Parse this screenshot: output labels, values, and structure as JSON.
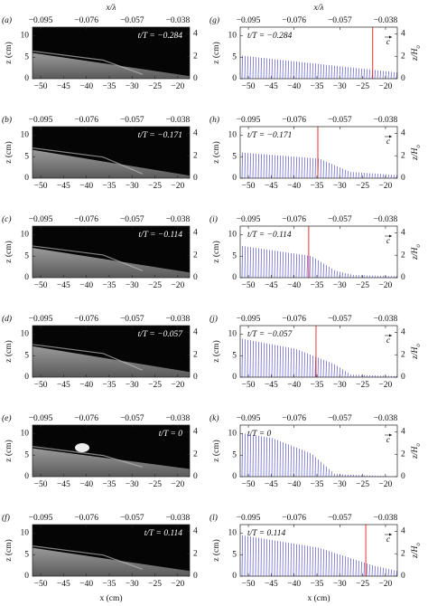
{
  "axes": {
    "top_label": "x/λ",
    "bottom_label": "x (cm)",
    "left_label": "z (cm)",
    "right_label": "z/H",
    "right_label_sub": "o",
    "vector_label": "c",
    "xlim": [
      -51.8,
      -17.4
    ],
    "xticks": [
      {
        "value": -50,
        "label": "−50"
      },
      {
        "value": -45,
        "label": "−45"
      },
      {
        "value": -40,
        "label": "−40"
      },
      {
        "value": -35,
        "label": "−35"
      },
      {
        "value": -30,
        "label": "−30"
      },
      {
        "value": -25,
        "label": "−25"
      },
      {
        "value": -20,
        "label": "−20"
      }
    ],
    "toplim": [
      -0.0984,
      -0.0331
    ],
    "topticks": [
      {
        "value": -0.095,
        "label": "−0.095"
      },
      {
        "value": -0.076,
        "label": "−0.076"
      },
      {
        "value": -0.057,
        "label": "−0.057"
      },
      {
        "value": -0.038,
        "label": "−0.038"
      }
    ],
    "zlim": [
      0,
      12
    ],
    "zticks": [
      0,
      5,
      10
    ],
    "hlim": [
      0,
      4.6
    ],
    "hticks": [
      0,
      2,
      4
    ]
  },
  "left_panels": [
    {
      "letter": "(a)",
      "time": "t/T = −0.284"
    },
    {
      "letter": "(b)",
      "time": "t/T = −0.171"
    },
    {
      "letter": "(c)",
      "time": "t/T = −0.114"
    },
    {
      "letter": "(d)",
      "time": "t/T = −0.057"
    },
    {
      "letter": "(e)",
      "time": "t/T = 0"
    },
    {
      "letter": "(f)",
      "time": "t/T = 0.114"
    }
  ],
  "right_panels": [
    {
      "letter": "(g)",
      "time": "t/T = −0.284",
      "crest_x": -22.8
    },
    {
      "letter": "(h)",
      "time": "t/T = −0.171",
      "crest_x": -34.8
    },
    {
      "letter": "(i)",
      "time": "t/T = −0.114",
      "crest_x": -36.8
    },
    {
      "letter": "(j)",
      "time": "t/T = −0.057",
      "crest_x": -35.2
    },
    {
      "letter": "(k)",
      "time": "t/T = 0"
    },
    {
      "letter": "(l)",
      "time": "t/T = 0.114",
      "crest_x": -24.3
    }
  ]
}
